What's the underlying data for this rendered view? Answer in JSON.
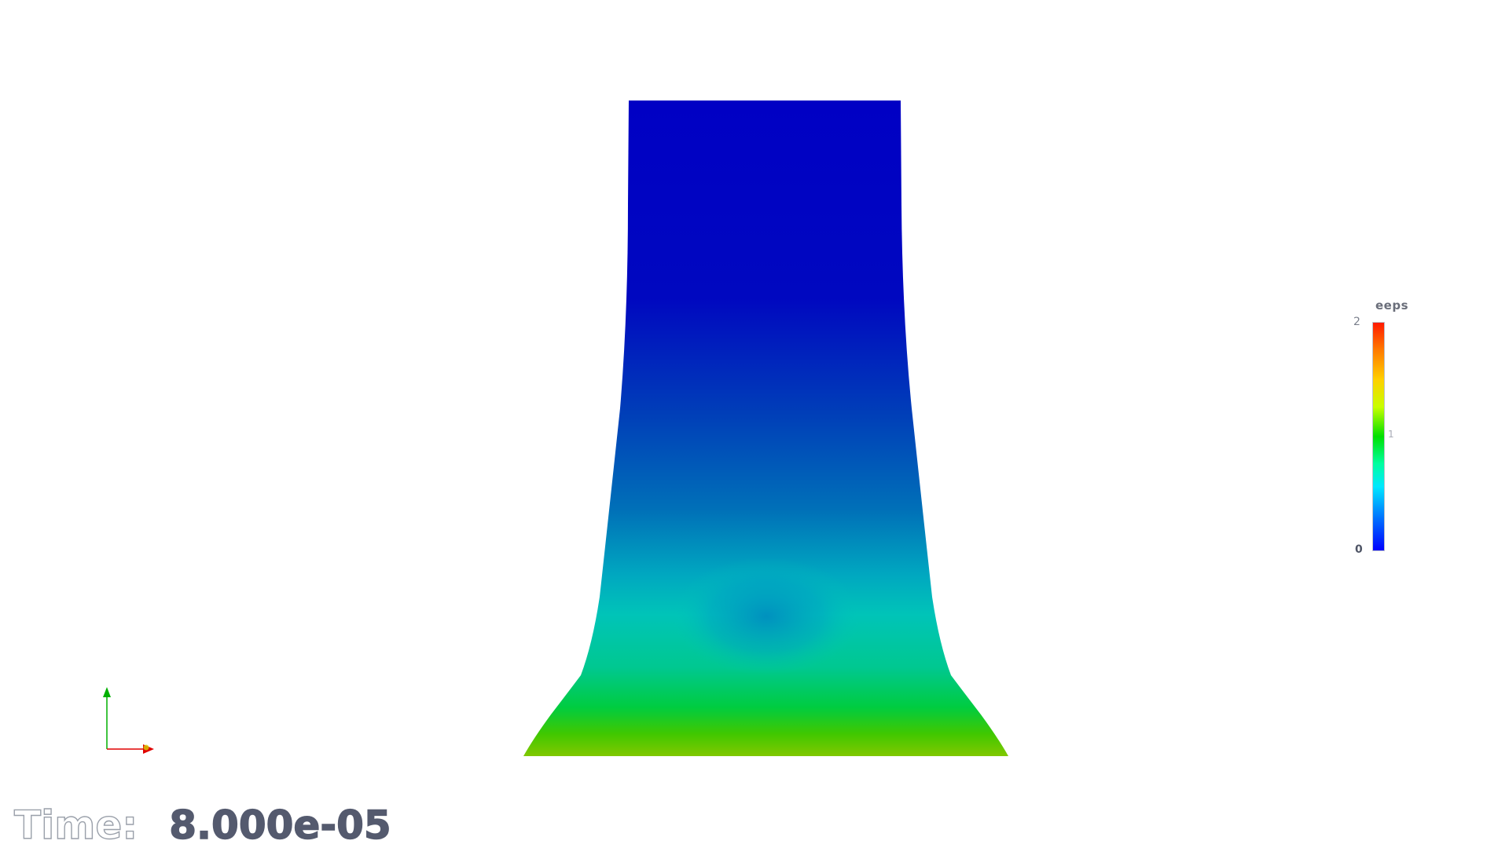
{
  "viewer": {
    "background_color": "#ffffff"
  },
  "mesh": {
    "colors": {
      "low": "#0000c8",
      "mid_low": "#0060c0",
      "mid": "#00c8b0",
      "green": "#00d000",
      "high": "#e0a000",
      "peak": "#d05000"
    }
  },
  "colorbar": {
    "title": "eeps",
    "max_label": "2",
    "mid_label": "1",
    "min_label": "0"
  },
  "axes_triad": {
    "icon": "axes-orientation-icon",
    "x_color": "#e00000",
    "y_color": "#00b000"
  },
  "time": {
    "label": "Time:",
    "value": "8.000e-05"
  }
}
